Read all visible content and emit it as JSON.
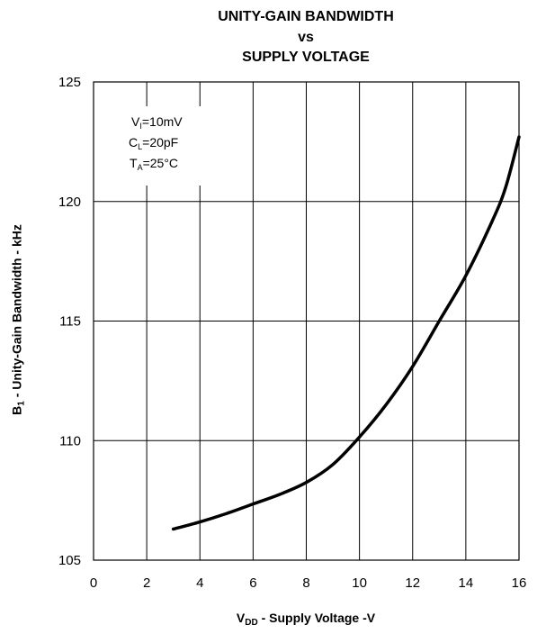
{
  "chart_data": {
    "type": "line",
    "title_lines": [
      "UNITY-GAIN BANDWIDTH",
      "vs",
      "SUPPLY VOLTAGE"
    ],
    "ylabel": {
      "main": "B",
      "sub": "1",
      "rest": " - Unity-Gain Bandwidth - kHz"
    },
    "xlabel": {
      "main": "V",
      "sub": "DD",
      "rest": " - Supply Voltage -V"
    },
    "xlim": [
      0,
      16
    ],
    "ylim": [
      105,
      125
    ],
    "x_ticks": [
      "0",
      "2",
      "4",
      "6",
      "8",
      "10",
      "12",
      "14",
      "16"
    ],
    "y_ticks": [
      "105",
      "110",
      "115",
      "120",
      "125"
    ],
    "grid": true,
    "annotations": [
      {
        "main": "V",
        "sub": "I",
        "rest": "=10mV"
      },
      {
        "main": "C",
        "sub": "L",
        "rest": "=20pF"
      },
      {
        "main": "T",
        "sub": "A",
        "rest": "=25°C"
      }
    ],
    "series": [
      {
        "points": [
          [
            3.0,
            106.3
          ],
          [
            4.0,
            106.6
          ],
          [
            5.0,
            106.95
          ],
          [
            6.0,
            107.35
          ],
          [
            7.0,
            107.75
          ],
          [
            8.0,
            108.25
          ],
          [
            9.0,
            109.0
          ],
          [
            10.0,
            110.15
          ],
          [
            11.0,
            111.5
          ],
          [
            12.0,
            113.1
          ],
          [
            13.0,
            115.0
          ],
          [
            14.0,
            116.9
          ],
          [
            15.0,
            119.2
          ],
          [
            15.5,
            120.6
          ],
          [
            16.0,
            122.7
          ]
        ],
        "color": "#000000"
      }
    ]
  }
}
